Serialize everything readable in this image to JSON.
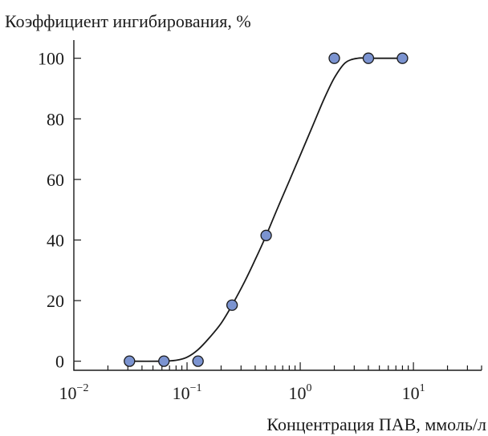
{
  "chart_data": {
    "type": "scatter",
    "ylabel": "Коэффициент ингибирования, %",
    "xlabel": "Концентрация ПАВ, ммоль/л",
    "x_scale": "log",
    "xlim": [
      0.01,
      40
    ],
    "ylim": [
      -3,
      106
    ],
    "x_ticks": [
      {
        "value": 0.01,
        "base": "10",
        "exp": "−2"
      },
      {
        "value": 0.1,
        "base": "10",
        "exp": "−1"
      },
      {
        "value": 1,
        "base": "10",
        "exp": "0"
      },
      {
        "value": 10,
        "base": "10",
        "exp": "1"
      }
    ],
    "y_ticks": [
      0,
      20,
      40,
      60,
      80,
      100
    ],
    "grid": false,
    "legend": "none",
    "series": [
      {
        "marker_color": "#7b93d0",
        "x": [
          0.031,
          0.0625,
          0.125,
          0.25,
          0.5,
          2,
          4,
          8
        ],
        "y": [
          0,
          0,
          0,
          18.5,
          41.5,
          100,
          100,
          100
        ]
      }
    ],
    "fit_curve": {
      "x": [
        0.031,
        0.06,
        0.08,
        0.1,
        0.125,
        0.16,
        0.2,
        0.25,
        0.32,
        0.4,
        0.5,
        0.63,
        0.8,
        1.0,
        1.3,
        1.6,
        2.0,
        2.5,
        3.2,
        4,
        5,
        8
      ],
      "y": [
        0,
        0,
        0.3,
        1.3,
        3.8,
        8,
        12.5,
        18.5,
        26,
        33.5,
        41.5,
        50.5,
        59.5,
        68,
        78,
        86,
        93.5,
        98.5,
        100,
        100,
        100,
        100
      ]
    }
  }
}
